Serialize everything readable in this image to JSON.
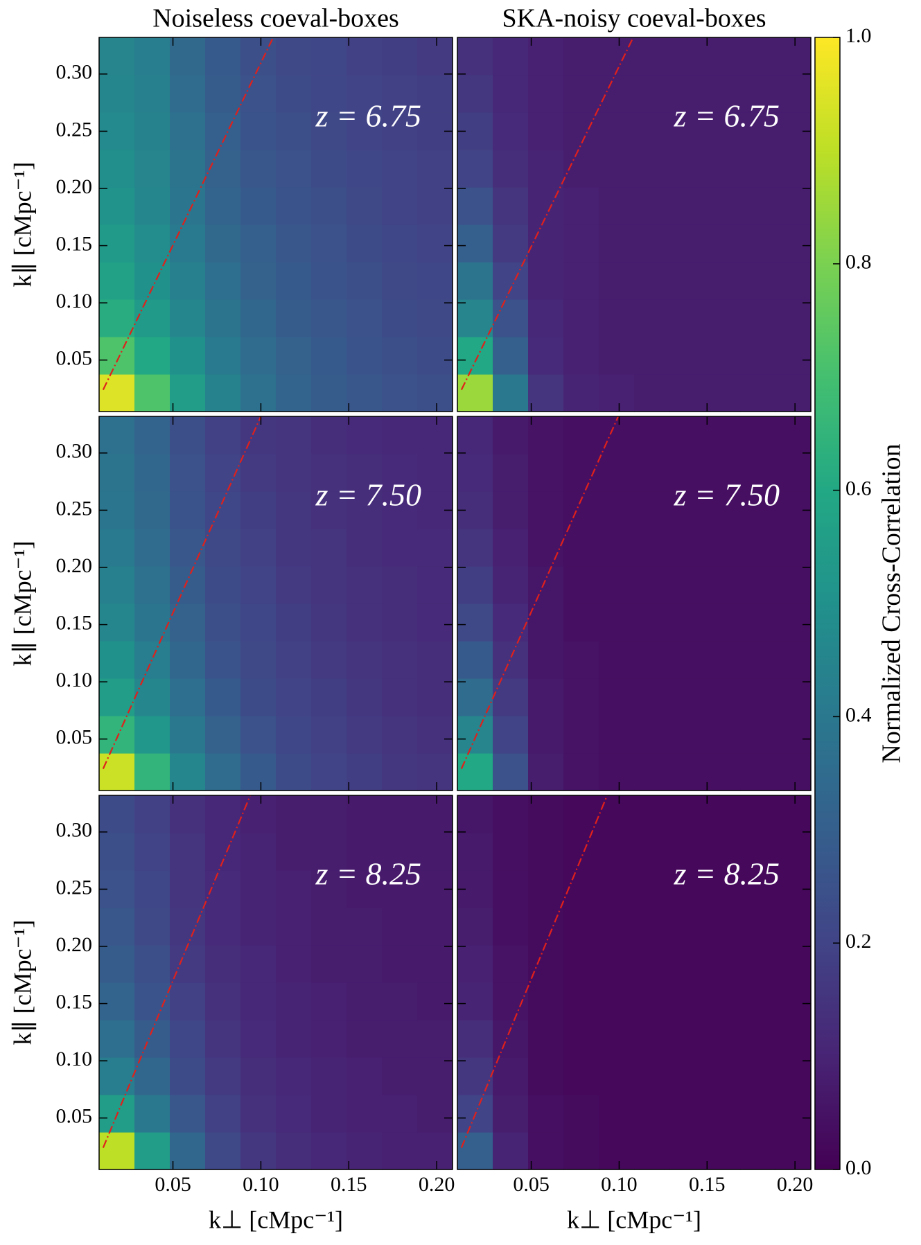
{
  "chart_data": [
    {
      "type": "heatmap",
      "title": "Noiseless coeval-boxes",
      "annotation": "z = 6.75",
      "ylabel": "k∥ [cMpc⁻¹]",
      "xlim": [
        0.008,
        0.209
      ],
      "ylim": [
        0.005,
        0.332
      ],
      "xticks": [
        0.05,
        {
          "value": 0.1,
          "label": "0.10"
        },
        0.15,
        {
          "value": 0.2,
          "label": "0.20"
        }
      ],
      "yticks": [
        0.05,
        {
          "value": 0.1,
          "label": "0.10"
        },
        0.15,
        {
          "value": 0.2,
          "label": "0.20"
        },
        0.25,
        {
          "value": 0.3,
          "label": "0.30"
        }
      ],
      "wedge": {
        "x": [
          0.0103,
          0.107
        ],
        "y": [
          0.024,
          0.332
        ]
      },
      "z": [
        [
          0.95,
          0.72,
          0.55,
          0.44,
          0.37,
          0.32,
          0.29,
          0.27,
          0.25,
          0.24
        ],
        [
          0.72,
          0.6,
          0.5,
          0.41,
          0.35,
          0.31,
          0.28,
          0.26,
          0.24,
          0.23
        ],
        [
          0.62,
          0.54,
          0.46,
          0.38,
          0.33,
          0.29,
          0.27,
          0.25,
          0.23,
          0.22
        ],
        [
          0.57,
          0.5,
          0.43,
          0.36,
          0.31,
          0.28,
          0.26,
          0.24,
          0.22,
          0.21
        ],
        [
          0.54,
          0.48,
          0.41,
          0.34,
          0.3,
          0.27,
          0.25,
          0.23,
          0.21,
          0.2
        ],
        [
          0.51,
          0.46,
          0.39,
          0.32,
          0.28,
          0.26,
          0.24,
          0.22,
          0.2,
          0.19
        ],
        [
          0.49,
          0.45,
          0.38,
          0.31,
          0.27,
          0.25,
          0.23,
          0.21,
          0.2,
          0.19
        ],
        [
          0.47,
          0.44,
          0.37,
          0.3,
          0.26,
          0.24,
          0.22,
          0.2,
          0.19,
          0.18
        ],
        [
          0.46,
          0.43,
          0.35,
          0.29,
          0.25,
          0.23,
          0.21,
          0.2,
          0.19,
          0.18
        ],
        [
          0.45,
          0.42,
          0.34,
          0.28,
          0.24,
          0.22,
          0.21,
          0.19,
          0.18,
          0.17
        ]
      ]
    },
    {
      "type": "heatmap",
      "title": "SKA-noisy coeval-boxes",
      "annotation": "z = 6.75",
      "xlim": [
        0.008,
        0.209
      ],
      "ylim": [
        0.005,
        0.332
      ],
      "xticks": [
        0.05,
        {
          "value": 0.1,
          "label": "0.10"
        },
        0.15,
        {
          "value": 0.2,
          "label": "0.20"
        }
      ],
      "yticks": [
        0.05,
        {
          "value": 0.1,
          "label": "0.10"
        },
        0.15,
        {
          "value": 0.2,
          "label": "0.20"
        },
        0.25,
        {
          "value": 0.3,
          "label": "0.30"
        }
      ],
      "wedge": {
        "x": [
          0.0103,
          0.108
        ],
        "y": [
          0.024,
          0.332
        ]
      },
      "z": [
        [
          0.85,
          0.4,
          0.15,
          0.1,
          0.09,
          0.08,
          0.08,
          0.08,
          0.08,
          0.08
        ],
        [
          0.6,
          0.3,
          0.12,
          0.09,
          0.08,
          0.08,
          0.08,
          0.08,
          0.08,
          0.08
        ],
        [
          0.45,
          0.25,
          0.11,
          0.09,
          0.08,
          0.08,
          0.08,
          0.08,
          0.08,
          0.08
        ],
        [
          0.38,
          0.2,
          0.1,
          0.09,
          0.08,
          0.08,
          0.08,
          0.08,
          0.08,
          0.08
        ],
        [
          0.3,
          0.17,
          0.1,
          0.09,
          0.08,
          0.08,
          0.08,
          0.08,
          0.08,
          0.08
        ],
        [
          0.25,
          0.15,
          0.1,
          0.09,
          0.08,
          0.08,
          0.08,
          0.08,
          0.08,
          0.08
        ],
        [
          0.2,
          0.13,
          0.1,
          0.08,
          0.08,
          0.08,
          0.08,
          0.08,
          0.08,
          0.08
        ],
        [
          0.18,
          0.12,
          0.09,
          0.08,
          0.08,
          0.08,
          0.08,
          0.08,
          0.08,
          0.08
        ],
        [
          0.16,
          0.11,
          0.09,
          0.08,
          0.08,
          0.08,
          0.08,
          0.08,
          0.08,
          0.08
        ],
        [
          0.14,
          0.11,
          0.09,
          0.08,
          0.08,
          0.08,
          0.08,
          0.08,
          0.08,
          0.08
        ]
      ]
    },
    {
      "type": "heatmap",
      "annotation": "z = 7.50",
      "ylabel": "k∥ [cMpc⁻¹]",
      "xlim": [
        0.008,
        0.209
      ],
      "ylim": [
        0.005,
        0.332
      ],
      "xticks": [
        0.05,
        {
          "value": 0.1,
          "label": "0.10"
        },
        0.15,
        {
          "value": 0.2,
          "label": "0.20"
        }
      ],
      "yticks": [
        0.05,
        {
          "value": 0.1,
          "label": "0.10"
        },
        0.15,
        {
          "value": 0.2,
          "label": "0.20"
        },
        0.25,
        {
          "value": 0.3,
          "label": "0.30"
        }
      ],
      "wedge": {
        "x": [
          0.0103,
          0.1
        ],
        "y": [
          0.024,
          0.332
        ]
      },
      "z": [
        [
          0.92,
          0.65,
          0.46,
          0.35,
          0.28,
          0.23,
          0.2,
          0.18,
          0.16,
          0.15
        ],
        [
          0.65,
          0.52,
          0.4,
          0.31,
          0.25,
          0.21,
          0.19,
          0.17,
          0.15,
          0.14
        ],
        [
          0.55,
          0.46,
          0.36,
          0.28,
          0.23,
          0.2,
          0.18,
          0.16,
          0.14,
          0.13
        ],
        [
          0.5,
          0.42,
          0.33,
          0.26,
          0.22,
          0.19,
          0.17,
          0.15,
          0.14,
          0.13
        ],
        [
          0.46,
          0.39,
          0.31,
          0.24,
          0.21,
          0.18,
          0.16,
          0.14,
          0.13,
          0.12
        ],
        [
          0.43,
          0.37,
          0.29,
          0.23,
          0.2,
          0.17,
          0.15,
          0.14,
          0.13,
          0.12
        ],
        [
          0.41,
          0.35,
          0.27,
          0.22,
          0.19,
          0.16,
          0.15,
          0.13,
          0.12,
          0.12
        ],
        [
          0.39,
          0.34,
          0.26,
          0.21,
          0.18,
          0.16,
          0.14,
          0.13,
          0.12,
          0.11
        ],
        [
          0.38,
          0.33,
          0.25,
          0.2,
          0.17,
          0.15,
          0.14,
          0.13,
          0.12,
          0.11
        ],
        [
          0.37,
          0.32,
          0.24,
          0.19,
          0.16,
          0.15,
          0.13,
          0.12,
          0.11,
          0.11
        ]
      ]
    },
    {
      "type": "heatmap",
      "annotation": "z = 7.50",
      "xlim": [
        0.008,
        0.209
      ],
      "ylim": [
        0.005,
        0.332
      ],
      "xticks": [
        0.05,
        {
          "value": 0.1,
          "label": "0.10"
        },
        0.15,
        {
          "value": 0.2,
          "label": "0.20"
        }
      ],
      "yticks": [
        0.05,
        {
          "value": 0.1,
          "label": "0.10"
        },
        0.15,
        {
          "value": 0.2,
          "label": "0.20"
        },
        0.25,
        {
          "value": 0.3,
          "label": "0.30"
        }
      ],
      "wedge": {
        "x": [
          0.0103,
          0.0995
        ],
        "y": [
          0.024,
          0.332
        ]
      },
      "z": [
        [
          0.6,
          0.25,
          0.08,
          0.05,
          0.04,
          0.04,
          0.04,
          0.04,
          0.04,
          0.04
        ],
        [
          0.45,
          0.2,
          0.07,
          0.05,
          0.04,
          0.04,
          0.04,
          0.04,
          0.04,
          0.04
        ],
        [
          0.35,
          0.17,
          0.07,
          0.05,
          0.04,
          0.04,
          0.04,
          0.04,
          0.04,
          0.04
        ],
        [
          0.28,
          0.14,
          0.06,
          0.05,
          0.04,
          0.04,
          0.04,
          0.04,
          0.04,
          0.04
        ],
        [
          0.22,
          0.12,
          0.06,
          0.04,
          0.04,
          0.04,
          0.04,
          0.04,
          0.04,
          0.04
        ],
        [
          0.18,
          0.1,
          0.06,
          0.04,
          0.04,
          0.04,
          0.04,
          0.04,
          0.04,
          0.04
        ],
        [
          0.15,
          0.09,
          0.05,
          0.04,
          0.04,
          0.04,
          0.04,
          0.04,
          0.04,
          0.04
        ],
        [
          0.13,
          0.08,
          0.05,
          0.04,
          0.04,
          0.04,
          0.04,
          0.04,
          0.04,
          0.04
        ],
        [
          0.12,
          0.08,
          0.05,
          0.04,
          0.04,
          0.04,
          0.04,
          0.04,
          0.04,
          0.04
        ],
        [
          0.11,
          0.07,
          0.05,
          0.04,
          0.04,
          0.04,
          0.04,
          0.04,
          0.04,
          0.04
        ]
      ]
    },
    {
      "type": "heatmap",
      "annotation": "z = 8.25",
      "ylabel": "k∥ [cMpc⁻¹]",
      "xlabel": "k⊥ [cMpc⁻¹]",
      "xlim": [
        0.008,
        0.209
      ],
      "ylim": [
        0.005,
        0.332
      ],
      "xticks": [
        0.05,
        {
          "value": 0.1,
          "label": "0.10"
        },
        0.15,
        {
          "value": 0.2,
          "label": "0.20"
        }
      ],
      "yticks": [
        0.05,
        {
          "value": 0.1,
          "label": "0.10"
        },
        0.15,
        {
          "value": 0.2,
          "label": "0.20"
        },
        0.25,
        {
          "value": 0.3,
          "label": "0.30"
        }
      ],
      "wedge": {
        "x": [
          0.0103,
          0.094
        ],
        "y": [
          0.024,
          0.332
        ]
      },
      "z": [
        [
          0.9,
          0.55,
          0.33,
          0.22,
          0.16,
          0.13,
          0.11,
          0.1,
          0.09,
          0.09
        ],
        [
          0.55,
          0.4,
          0.27,
          0.19,
          0.14,
          0.12,
          0.1,
          0.09,
          0.09,
          0.08
        ],
        [
          0.42,
          0.33,
          0.23,
          0.17,
          0.13,
          0.11,
          0.1,
          0.09,
          0.08,
          0.08
        ],
        [
          0.36,
          0.29,
          0.21,
          0.15,
          0.12,
          0.1,
          0.09,
          0.08,
          0.08,
          0.08
        ],
        [
          0.32,
          0.26,
          0.19,
          0.14,
          0.11,
          0.1,
          0.09,
          0.08,
          0.08,
          0.07
        ],
        [
          0.29,
          0.24,
          0.17,
          0.13,
          0.11,
          0.09,
          0.08,
          0.08,
          0.07,
          0.07
        ],
        [
          0.27,
          0.22,
          0.16,
          0.12,
          0.1,
          0.09,
          0.08,
          0.08,
          0.07,
          0.07
        ],
        [
          0.25,
          0.21,
          0.15,
          0.12,
          0.1,
          0.09,
          0.08,
          0.07,
          0.07,
          0.07
        ],
        [
          0.24,
          0.2,
          0.15,
          0.11,
          0.1,
          0.08,
          0.08,
          0.07,
          0.07,
          0.07
        ],
        [
          0.23,
          0.19,
          0.14,
          0.11,
          0.09,
          0.08,
          0.08,
          0.07,
          0.07,
          0.07
        ]
      ]
    },
    {
      "type": "heatmap",
      "annotation": "z = 8.25",
      "xlabel": "k⊥ [cMpc⁻¹]",
      "xlim": [
        0.008,
        0.209
      ],
      "ylim": [
        0.005,
        0.332
      ],
      "xticks": [
        0.05,
        {
          "value": 0.1,
          "label": "0.10"
        },
        0.15,
        {
          "value": 0.2,
          "label": "0.20"
        }
      ],
      "yticks": [
        0.05,
        {
          "value": 0.1,
          "label": "0.10"
        },
        0.15,
        {
          "value": 0.2,
          "label": "0.20"
        },
        0.25,
        {
          "value": 0.3,
          "label": "0.30"
        }
      ],
      "wedge": {
        "x": [
          0.0103,
          0.0932
        ],
        "y": [
          0.024,
          0.332
        ]
      },
      "z": [
        [
          0.3,
          0.1,
          0.04,
          0.03,
          0.02,
          0.02,
          0.02,
          0.02,
          0.02,
          0.02
        ],
        [
          0.2,
          0.08,
          0.04,
          0.03,
          0.02,
          0.02,
          0.02,
          0.02,
          0.02,
          0.02
        ],
        [
          0.16,
          0.07,
          0.03,
          0.02,
          0.02,
          0.02,
          0.02,
          0.02,
          0.02,
          0.02
        ],
        [
          0.13,
          0.06,
          0.03,
          0.02,
          0.02,
          0.02,
          0.02,
          0.02,
          0.02,
          0.02
        ],
        [
          0.1,
          0.05,
          0.03,
          0.02,
          0.02,
          0.02,
          0.02,
          0.02,
          0.02,
          0.02
        ],
        [
          0.09,
          0.05,
          0.03,
          0.02,
          0.02,
          0.02,
          0.02,
          0.02,
          0.02,
          0.02
        ],
        [
          0.08,
          0.04,
          0.03,
          0.02,
          0.02,
          0.02,
          0.02,
          0.02,
          0.02,
          0.02
        ],
        [
          0.07,
          0.04,
          0.03,
          0.02,
          0.02,
          0.02,
          0.02,
          0.02,
          0.02,
          0.02
        ],
        [
          0.07,
          0.04,
          0.03,
          0.02,
          0.02,
          0.02,
          0.02,
          0.02,
          0.02,
          0.02
        ],
        [
          0.06,
          0.04,
          0.03,
          0.02,
          0.02,
          0.02,
          0.02,
          0.02,
          0.02,
          0.02
        ]
      ]
    }
  ],
  "colorbar": {
    "label": "Normalized Cross-Correlation",
    "colormap": "viridis",
    "lim": [
      0,
      1
    ],
    "ticks": [
      {
        "value": 0,
        "label": "0.0"
      },
      0.2,
      0.4,
      0.6,
      0.8,
      {
        "value": 1,
        "label": "1.0"
      }
    ]
  }
}
